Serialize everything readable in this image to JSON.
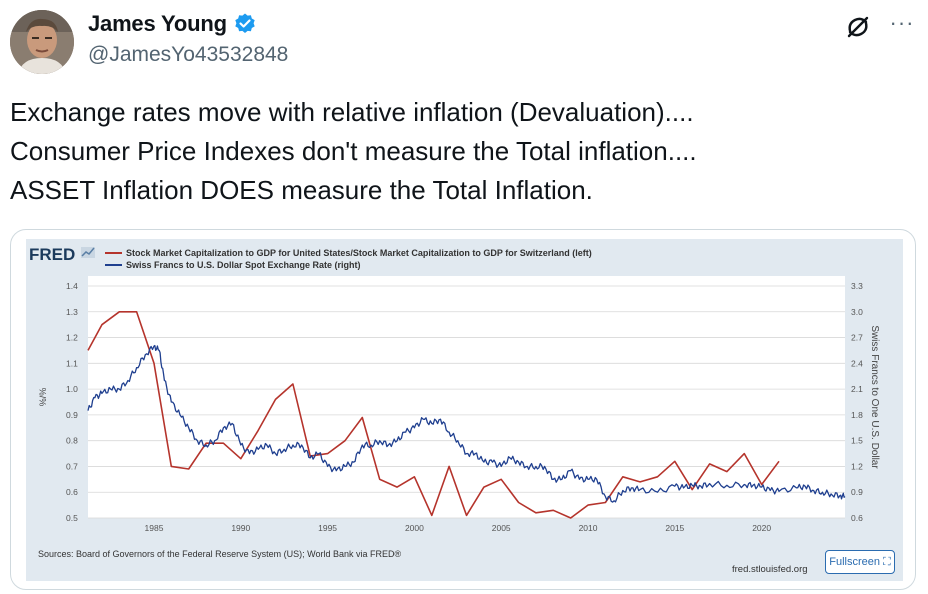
{
  "author": {
    "name": "James Young",
    "handle": "@JamesYo43532848",
    "verified": true,
    "verified_color": "#1d9bf0"
  },
  "actions": {
    "grok_icon": "grok-icon",
    "more_icon": "more-horizontal-icon",
    "more_label": "···"
  },
  "tweet": {
    "lines": [
      "Exchange rates move with relative inflation (Devaluation)....",
      "Consumer Price Indexes don't measure the Total inflation....",
      "ASSET Inflation DOES measure the Total Inflation."
    ]
  },
  "fred": {
    "logo": "FRED",
    "background": "#e1e9f0",
    "source": "Sources: Board of Governors of the Federal Reserve System (US); World Bank via FRED®",
    "site": "fred.stlouisfed.org",
    "fullscreen_label": "Fullscreen"
  },
  "chart_data": {
    "type": "line",
    "left_ylabel": "%/%",
    "right_ylabel": "Swiss Francs to One U.S. Dollar",
    "left_ticks": [
      "1.4",
      "1.3",
      "1.2",
      "1.1",
      "1.0",
      "0.9",
      "0.8",
      "0.7",
      "0.6",
      "0.5"
    ],
    "right_ticks": [
      "3.3",
      "3.0",
      "2.7",
      "2.4",
      "2.1",
      "1.8",
      "1.5",
      "1.2",
      "0.9",
      "0.6"
    ],
    "x_ticks": [
      "1985",
      "1990",
      "1995",
      "2000",
      "2005",
      "2010",
      "2015",
      "2020"
    ],
    "ylim_left": [
      0.5,
      1.4
    ],
    "ylim_right": [
      0.6,
      3.3
    ],
    "xlim": [
      1981.2,
      2024.8
    ],
    "grid": true,
    "series": [
      {
        "name": "Stock Market Capitalization to GDP for United States/Stock Market Capitalization to GDP for Switzerland (left)",
        "axis": "left",
        "color": "#b5342c",
        "points": [
          [
            1981.2,
            1.15
          ],
          [
            1982,
            1.25
          ],
          [
            1983,
            1.3
          ],
          [
            1984,
            1.3
          ],
          [
            1985,
            1.1
          ],
          [
            1986,
            0.7
          ],
          [
            1987,
            0.69
          ],
          [
            1988,
            0.79
          ],
          [
            1989,
            0.79
          ],
          [
            1990,
            0.73
          ],
          [
            1991,
            0.84
          ],
          [
            1992,
            0.96
          ],
          [
            1993,
            1.02
          ],
          [
            1994,
            0.74
          ],
          [
            1995,
            0.75
          ],
          [
            1996,
            0.8
          ],
          [
            1997,
            0.89
          ],
          [
            1998,
            0.65
          ],
          [
            1999,
            0.62
          ],
          [
            2000,
            0.66
          ],
          [
            2001,
            0.51
          ],
          [
            2002,
            0.7
          ],
          [
            2003,
            0.51
          ],
          [
            2004,
            0.62
          ],
          [
            2005,
            0.65
          ],
          [
            2006,
            0.56
          ],
          [
            2007,
            0.52
          ],
          [
            2008,
            0.53
          ],
          [
            2009,
            0.5
          ],
          [
            2010,
            0.55
          ],
          [
            2011,
            0.56
          ],
          [
            2012,
            0.66
          ],
          [
            2013,
            0.64
          ],
          [
            2014,
            0.66
          ],
          [
            2015,
            0.72
          ],
          [
            2016,
            0.61
          ],
          [
            2017,
            0.71
          ],
          [
            2018,
            0.68
          ],
          [
            2019,
            0.75
          ],
          [
            2020,
            0.63
          ],
          [
            2021,
            0.72
          ]
        ]
      },
      {
        "name": "Swiss Francs to U.S. Dollar Spot Exchange Rate (right)",
        "axis": "right",
        "color": "#1f3f8f",
        "points": [
          [
            1981.2,
            1.85
          ],
          [
            1981.6,
            2.0
          ],
          [
            1982,
            2.05
          ],
          [
            1982.5,
            2.1
          ],
          [
            1983,
            2.1
          ],
          [
            1983.5,
            2.2
          ],
          [
            1984,
            2.35
          ],
          [
            1984.5,
            2.5
          ],
          [
            1985,
            2.6
          ],
          [
            1985.3,
            2.55
          ],
          [
            1985.6,
            2.2
          ],
          [
            1986,
            1.95
          ],
          [
            1986.5,
            1.8
          ],
          [
            1987,
            1.65
          ],
          [
            1987.5,
            1.5
          ],
          [
            1988,
            1.45
          ],
          [
            1988.5,
            1.5
          ],
          [
            1989,
            1.65
          ],
          [
            1989.5,
            1.7
          ],
          [
            1990,
            1.45
          ],
          [
            1990.5,
            1.35
          ],
          [
            1991,
            1.4
          ],
          [
            1991.5,
            1.45
          ],
          [
            1992,
            1.35
          ],
          [
            1992.5,
            1.4
          ],
          [
            1993,
            1.45
          ],
          [
            1993.5,
            1.45
          ],
          [
            1994,
            1.3
          ],
          [
            1994.5,
            1.35
          ],
          [
            1995,
            1.2
          ],
          [
            1995.5,
            1.15
          ],
          [
            1996,
            1.2
          ],
          [
            1996.5,
            1.25
          ],
          [
            1997,
            1.45
          ],
          [
            1997.5,
            1.45
          ],
          [
            1998,
            1.5
          ],
          [
            1998.5,
            1.45
          ],
          [
            1999,
            1.5
          ],
          [
            1999.5,
            1.6
          ],
          [
            2000,
            1.65
          ],
          [
            2000.5,
            1.75
          ],
          [
            2001,
            1.7
          ],
          [
            2001.5,
            1.75
          ],
          [
            2002,
            1.6
          ],
          [
            2002.5,
            1.5
          ],
          [
            2003,
            1.35
          ],
          [
            2003.5,
            1.35
          ],
          [
            2004,
            1.25
          ],
          [
            2004.5,
            1.25
          ],
          [
            2005,
            1.2
          ],
          [
            2005.5,
            1.3
          ],
          [
            2006,
            1.25
          ],
          [
            2006.5,
            1.2
          ],
          [
            2007,
            1.2
          ],
          [
            2007.5,
            1.2
          ],
          [
            2008,
            1.05
          ],
          [
            2008.5,
            1.05
          ],
          [
            2009,
            1.15
          ],
          [
            2009.5,
            1.05
          ],
          [
            2010,
            1.05
          ],
          [
            2010.5,
            1.05
          ],
          [
            2011,
            0.85
          ],
          [
            2011.5,
            0.8
          ],
          [
            2012,
            0.92
          ],
          [
            2012.5,
            0.95
          ],
          [
            2013,
            0.93
          ],
          [
            2014,
            0.9
          ],
          [
            2015,
            0.97
          ],
          [
            2015.5,
            0.95
          ],
          [
            2016,
            0.98
          ],
          [
            2016.5,
            0.97
          ],
          [
            2017,
            1.0
          ],
          [
            2018,
            0.98
          ],
          [
            2019,
            0.99
          ],
          [
            2019.5,
            0.98
          ],
          [
            2020,
            0.96
          ],
          [
            2020.5,
            0.92
          ],
          [
            2021,
            0.91
          ],
          [
            2022,
            0.95
          ],
          [
            2022.5,
            0.97
          ],
          [
            2023,
            0.92
          ],
          [
            2023.5,
            0.9
          ],
          [
            2024,
            0.88
          ],
          [
            2024.5,
            0.86
          ],
          [
            2024.8,
            0.85
          ]
        ]
      }
    ]
  }
}
